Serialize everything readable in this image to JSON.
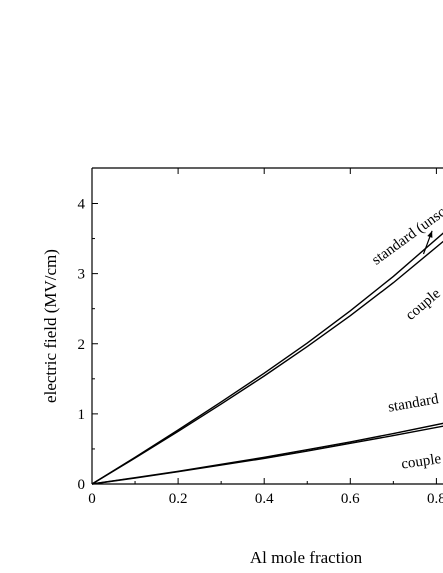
{
  "chart_data": {
    "type": "line",
    "xlabel": "Al mole fraction",
    "ylabel": "electric field (MV/cm)",
    "xlim": [
      0,
      0.82
    ],
    "ylim": [
      0,
      4.5
    ],
    "x_ticks": [
      0,
      0.2,
      0.4,
      0.6,
      0.8
    ],
    "x_tick_labels": [
      "0",
      "0.2",
      "0.4",
      "0.6",
      "0.8"
    ],
    "y_ticks": [
      0,
      1,
      2,
      3,
      4
    ],
    "y_tick_labels": [
      "0",
      "1",
      "2",
      "3",
      "4"
    ],
    "grid": false,
    "legend": "none",
    "series": [
      {
        "x": [
          0,
          0.1,
          0.2,
          0.3,
          0.4,
          0.5,
          0.6,
          0.7,
          0.82
        ],
        "y": [
          0,
          0.38,
          0.77,
          1.17,
          1.58,
          2.01,
          2.47,
          2.96,
          3.6
        ]
      },
      {
        "x": [
          0,
          0.1,
          0.2,
          0.3,
          0.4,
          0.5,
          0.6,
          0.7,
          0.82
        ],
        "y": [
          0,
          0.37,
          0.75,
          1.14,
          1.54,
          1.96,
          2.4,
          2.87,
          3.48
        ]
      },
      {
        "x": [
          0,
          0.1,
          0.2,
          0.3,
          0.4,
          0.5,
          0.6,
          0.7,
          0.82
        ],
        "y": [
          0,
          0.09,
          0.18,
          0.28,
          0.38,
          0.49,
          0.6,
          0.72,
          0.87
        ]
      },
      {
        "x": [
          0,
          0.1,
          0.2,
          0.3,
          0.4,
          0.5,
          0.6,
          0.7,
          0.82
        ],
        "y": [
          0,
          0.085,
          0.175,
          0.27,
          0.365,
          0.47,
          0.58,
          0.69,
          0.83
        ]
      }
    ],
    "annotations": [
      {
        "text": "standard (unsc",
        "x": 0.66,
        "y": 3.12,
        "angle": -36
      },
      {
        "text": "couple",
        "x": 0.74,
        "y": 2.33,
        "angle": -40
      },
      {
        "text": "standard",
        "x": 0.69,
        "y": 1.03,
        "angle": -10
      },
      {
        "text": "couple",
        "x": 0.72,
        "y": 0.22,
        "angle": -8
      }
    ],
    "arrow": {
      "from": [
        0.77,
        3.28
      ],
      "to": [
        0.79,
        3.61
      ]
    }
  }
}
